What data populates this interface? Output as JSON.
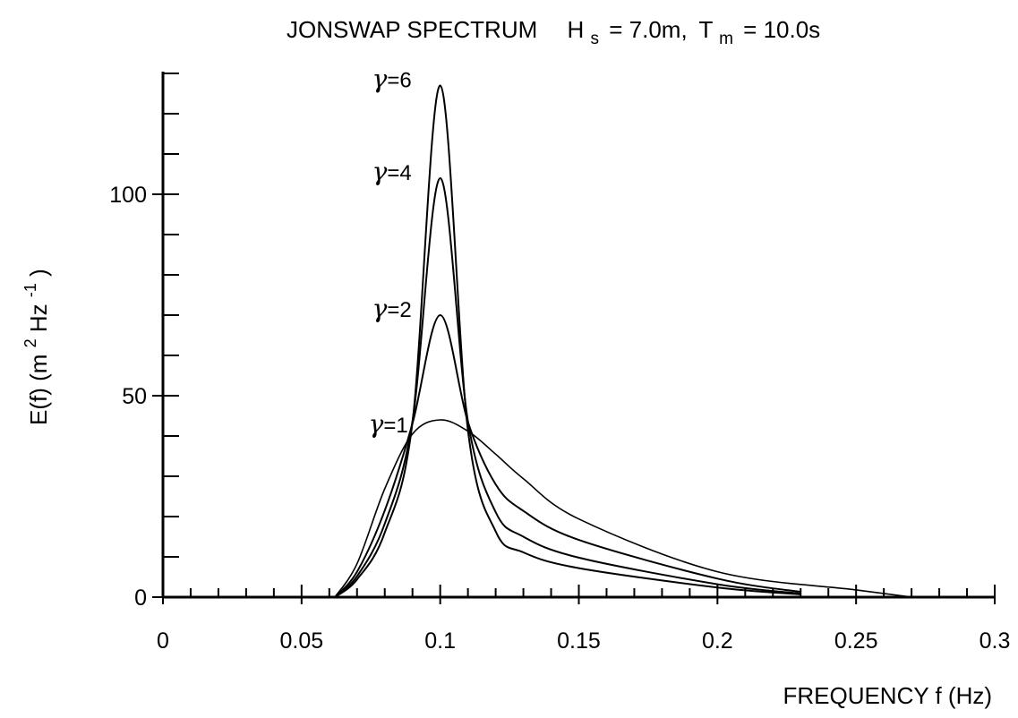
{
  "chart_data": {
    "type": "line",
    "title": {
      "main": "JONSWAP SPECTRUM",
      "hs_symbol": "H",
      "hs_subscript": "s",
      "hs_value": "= 7.0m,",
      "tm_symbol": "T",
      "tm_subscript": "m",
      "tm_value": "= 10.0s"
    },
    "xlabel": "FREQUENCY  f  (Hz)",
    "ylabel": {
      "main": "E(f)  (m",
      "sup1": "2",
      "mid": " Hz",
      "sup2": "-1",
      "end": ")"
    },
    "xlim": [
      0,
      0.3
    ],
    "ylim": [
      0,
      130
    ],
    "x_ticks": [
      {
        "value": 0,
        "label": "0"
      },
      {
        "value": 0.05,
        "label": "0.05"
      },
      {
        "value": 0.1,
        "label": "0.1"
      },
      {
        "value": 0.15,
        "label": "0.15"
      },
      {
        "value": 0.2,
        "label": "0.2"
      },
      {
        "value": 0.25,
        "label": "0.25"
      },
      {
        "value": 0.3,
        "label": "0.3"
      }
    ],
    "y_ticks": [
      {
        "value": 0,
        "label": "0"
      },
      {
        "value": 50,
        "label": "50"
      },
      {
        "value": 100,
        "label": "100"
      }
    ],
    "x_minor_step": 0.01,
    "y_minor_step": 10,
    "grid": false,
    "series": [
      {
        "name": "γ=1",
        "label_symbol": "γ",
        "label_value": "=1",
        "gamma": 1,
        "peak": 44,
        "x": [
          0.062,
          0.07,
          0.08,
          0.09,
          0.1,
          0.11,
          0.12,
          0.13,
          0.15,
          0.2,
          0.25,
          0.27
        ],
        "y": [
          0,
          8.3,
          26.9,
          40.5,
          44,
          41.2,
          35.5,
          29.4,
          19.4,
          6.3,
          1.8,
          0
        ]
      },
      {
        "name": "γ=2",
        "label_symbol": "γ",
        "label_value": "=2",
        "gamma": 2,
        "peak": 70,
        "x": [
          0.062,
          0.07,
          0.08,
          0.09,
          0.1,
          0.11,
          0.12,
          0.13,
          0.15,
          0.2,
          0.23
        ],
        "y": [
          0,
          6.3,
          21.5,
          43.1,
          70,
          43.5,
          28,
          21.4,
          14.2,
          4.6,
          1.3
        ]
      },
      {
        "name": "γ=4",
        "label_symbol": "γ",
        "label_value": "=4",
        "gamma": 4,
        "peak": 104,
        "x": [
          0.062,
          0.07,
          0.08,
          0.09,
          0.1,
          0.11,
          0.12,
          0.13,
          0.15,
          0.2,
          0.23
        ],
        "y": [
          0,
          5.2,
          18.2,
          43.7,
          104,
          43.7,
          21.1,
          15,
          9.8,
          3.2,
          0.9
        ]
      },
      {
        "name": "γ=6",
        "label_symbol": "γ",
        "label_value": "=6",
        "gamma": 6,
        "peak": 127,
        "x": [
          0.062,
          0.07,
          0.08,
          0.09,
          0.1,
          0.11,
          0.12,
          0.13,
          0.15,
          0.2,
          0.23
        ],
        "y": [
          0,
          4.4,
          16,
          43.4,
          127,
          41.5,
          16.3,
          11.1,
          7.2,
          2.4,
          0.7
        ]
      }
    ]
  }
}
